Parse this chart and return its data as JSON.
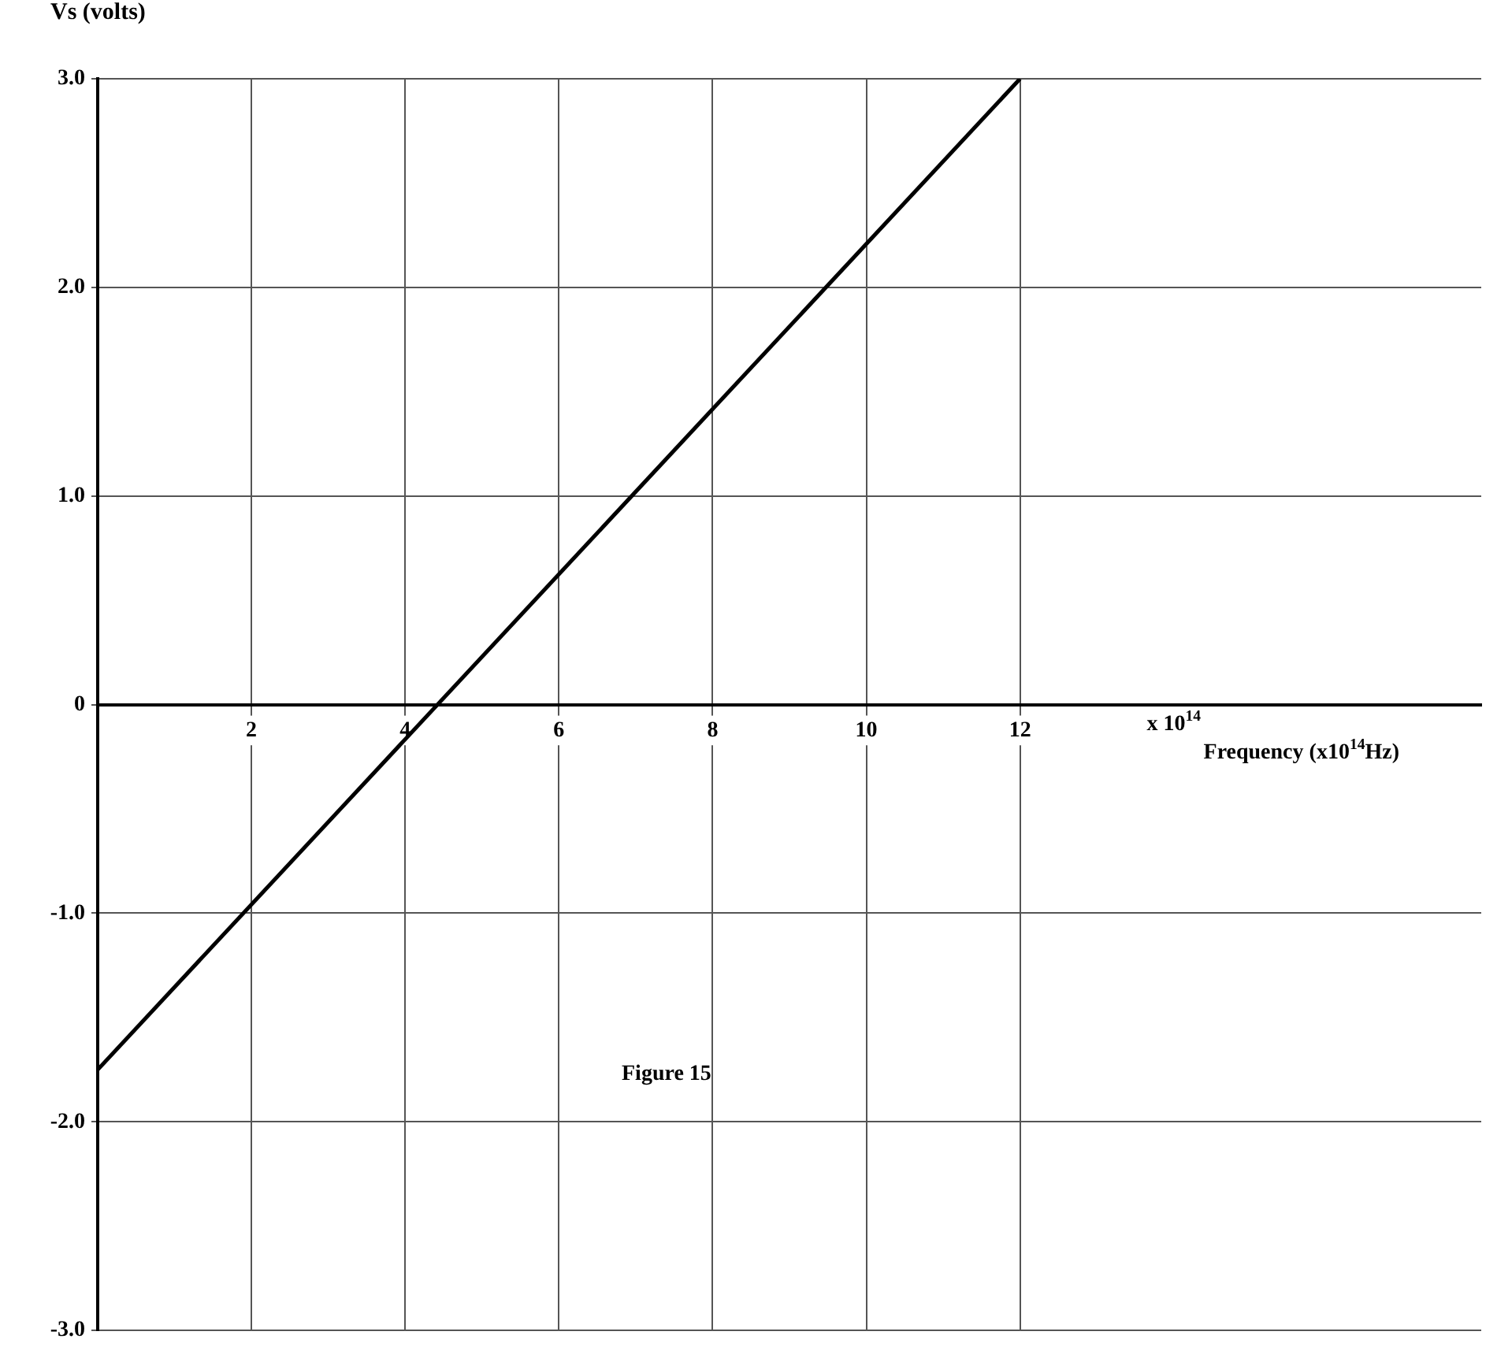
{
  "chart_data": {
    "type": "line",
    "xlabel": "Frequency (x10$^{14}$Hz)",
    "ylabel": "Vs (volts)",
    "annotations": [
      "x 10$^{14}$",
      "Figure 15"
    ],
    "x": [
      0,
      12
    ],
    "series": [
      {
        "color": "#000000",
        "values": [
          -1.75,
          3.0
        ]
      }
    ],
    "xlim": [
      0,
      18
    ],
    "xticks": [
      2,
      4,
      6,
      8,
      10,
      12
    ],
    "ylim": [
      -3,
      3
    ],
    "yticks": [
      {
        "value": -3,
        "label": "-3.0"
      },
      {
        "value": -2,
        "label": "-2.0"
      },
      {
        "value": -1,
        "label": "-1.0"
      },
      0,
      {
        "value": 1,
        "label": "1.0"
      },
      {
        "value": 2,
        "label": "2.0"
      },
      {
        "value": 3,
        "label": "3.0"
      }
    ],
    "grid": true,
    "legend": false,
    "marker": "none",
    "line_style": "solid"
  }
}
